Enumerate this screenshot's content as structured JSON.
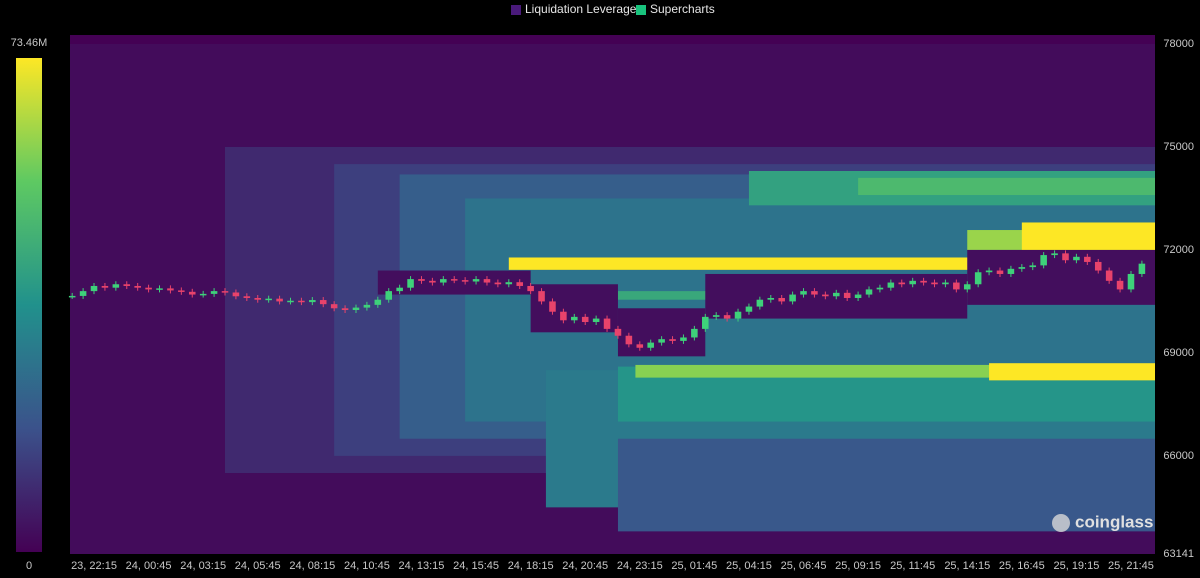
{
  "chart_data": {
    "type": "liquidation-heatmap",
    "legend": [
      {
        "name": "Liquidation Leverage",
        "color": "#4a1a7a"
      },
      {
        "name": "Supercharts",
        "color": "#19c37d"
      }
    ],
    "watermark": "coinglass",
    "colormap": [
      "#440154",
      "#3b528b",
      "#21918c",
      "#5ec962",
      "#fde725"
    ],
    "clim": [
      0,
      73460000
    ],
    "cticks": [
      0,
      {
        "value": 73460000,
        "label": "73.46M"
      }
    ],
    "xlim": [
      -1.1,
      48.6
    ],
    "xticks": [
      {
        "value": 0,
        "label": "23, 22:15"
      },
      {
        "value": 2.5,
        "label": "24, 00:45"
      },
      {
        "value": 5,
        "label": "24, 03:15"
      },
      {
        "value": 7.5,
        "label": "24, 05:45"
      },
      {
        "value": 10,
        "label": "24, 08:15"
      },
      {
        "value": 12.5,
        "label": "24, 10:45"
      },
      {
        "value": 15,
        "label": "24, 13:15"
      },
      {
        "value": 17.5,
        "label": "24, 15:45"
      },
      {
        "value": 20,
        "label": "24, 18:15"
      },
      {
        "value": 22.5,
        "label": "24, 20:45"
      },
      {
        "value": 25,
        "label": "24, 23:15"
      },
      {
        "value": 27.5,
        "label": "25, 01:45"
      },
      {
        "value": 30,
        "label": "25, 04:15"
      },
      {
        "value": 32.5,
        "label": "25, 06:45"
      },
      {
        "value": 35,
        "label": "25, 09:15"
      },
      {
        "value": 37.5,
        "label": "25, 11:45"
      },
      {
        "value": 40,
        "label": "25, 14:15"
      },
      {
        "value": 42.5,
        "label": "25, 16:45"
      },
      {
        "value": 45,
        "label": "25, 19:15"
      },
      {
        "value": 47.5,
        "label": "25, 21:45"
      }
    ],
    "ylim": [
      63141,
      78000
    ],
    "yticks": [
      63141,
      66000,
      69000,
      72000,
      75000,
      78000
    ],
    "heatmap": {
      "t0": [
        -1.1,
        6,
        11,
        14,
        17,
        20.7,
        24,
        24,
        30,
        35,
        20,
        19,
        24.8,
        41,
        40,
        42.5,
        13,
        20,
        24,
        28,
        40
      ],
      "t1": [
        48.6,
        48.6,
        48.6,
        48.6,
        48.6,
        48.6,
        48.6,
        48.6,
        48.6,
        48.6,
        48.6,
        48.6,
        48.6,
        48.6,
        48.6,
        48.6,
        20,
        24,
        28,
        40,
        48.6
      ],
      "p0": [
        63141,
        65500,
        66000,
        66500,
        67000,
        64500,
        63800,
        67000,
        73300,
        73600,
        70550,
        71420,
        68280,
        68200,
        72000,
        72000,
        70700,
        69600,
        68900,
        70000,
        70400
      ],
      "p1": [
        78000,
        75000,
        74500,
        74200,
        73500,
        68500,
        66500,
        68600,
        74300,
        74100,
        70800,
        71780,
        68650,
        68700,
        72580,
        72800,
        71400,
        71000,
        70300,
        71300,
        72000
      ],
      "values": [
        2500000,
        9000000,
        14000000,
        22000000,
        28000000,
        30000000,
        20000000,
        38000000,
        42000000,
        50000000,
        44000000,
        73460000,
        60000000,
        73460000,
        62000000,
        73460000,
        3000000,
        3000000,
        3000000,
        3000000,
        3000000
      ]
    },
    "price": {
      "up_color": "#3ed17a",
      "down_color": "#e8436b",
      "x": [
        -1,
        -0.5,
        0,
        0.5,
        1,
        1.5,
        2,
        2.5,
        3,
        3.5,
        4,
        4.5,
        5,
        5.5,
        6,
        6.5,
        7,
        7.5,
        8,
        8.5,
        9,
        9.5,
        10,
        10.5,
        11,
        11.5,
        12,
        12.5,
        13,
        13.5,
        14,
        14.5,
        15,
        15.5,
        16,
        16.5,
        17,
        17.5,
        18,
        18.5,
        19,
        19.5,
        20,
        20.5,
        21,
        21.5,
        22,
        22.5,
        23,
        23.5,
        24,
        24.5,
        25,
        25.5,
        26,
        26.5,
        27,
        27.5,
        28,
        28.5,
        29,
        29.5,
        30,
        30.5,
        31,
        31.5,
        32,
        32.5,
        33,
        33.5,
        34,
        34.5,
        35,
        35.5,
        36,
        36.5,
        37,
        37.5,
        38,
        38.5,
        39,
        39.5,
        40,
        40.5,
        41,
        41.5,
        42,
        42.5,
        43,
        43.5,
        44,
        44.5,
        45,
        45.5,
        46,
        46.5,
        47,
        47.5,
        48
      ],
      "values": [
        70660,
        70800,
        70950,
        70900,
        71000,
        70950,
        70900,
        70850,
        70880,
        70820,
        70780,
        70700,
        70720,
        70800,
        70760,
        70650,
        70600,
        70550,
        70580,
        70500,
        70520,
        70480,
        70540,
        70420,
        70300,
        70250,
        70320,
        70400,
        70550,
        70800,
        70900,
        71150,
        71100,
        71050,
        71150,
        71120,
        71080,
        71150,
        71050,
        71000,
        71060,
        70950,
        70800,
        70500,
        70200,
        69950,
        70050,
        69900,
        70000,
        69700,
        69500,
        69250,
        69150,
        69300,
        69400,
        69350,
        69450,
        69700,
        70050,
        70100,
        70000,
        70200,
        70350,
        70550,
        70600,
        70500,
        70700,
        70800,
        70700,
        70650,
        70750,
        70600,
        70700,
        70850,
        70900,
        71050,
        71000,
        71100,
        71050,
        71000,
        71050,
        70850,
        71000,
        71350,
        71400,
        71300,
        71450,
        71500,
        71550,
        71850,
        71900,
        71700,
        71800,
        71650,
        71400,
        71100,
        70850,
        71300,
        71600
      ]
    }
  }
}
